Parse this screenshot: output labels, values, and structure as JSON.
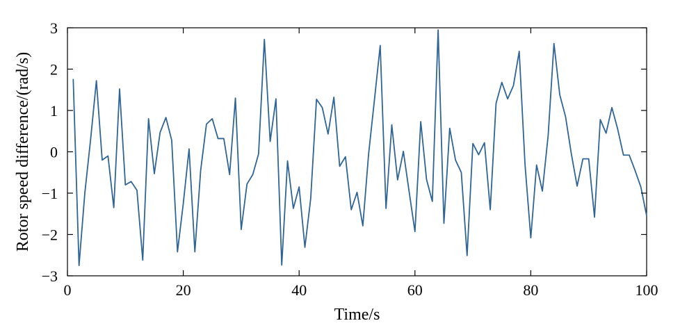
{
  "chart_data": {
    "type": "line",
    "xlabel": "Time/s",
    "ylabel": "Rotor speed difference/(rad/s)",
    "xlim": [
      0,
      100
    ],
    "ylim": [
      -3,
      3
    ],
    "xticks": [
      0,
      20,
      40,
      60,
      80,
      100
    ],
    "xtick_labels": [
      "0",
      "20",
      "40",
      "60",
      "80",
      "100"
    ],
    "yticks": [
      -3,
      -2,
      -1,
      0,
      1,
      2,
      3
    ],
    "ytick_labels": [
      "−3",
      "−2",
      "−1",
      "0",
      "1",
      "2",
      "3"
    ],
    "grid": false,
    "legend": "none",
    "series": [
      {
        "color": "#2e6496",
        "x": [
          1,
          2,
          3,
          4,
          5,
          6,
          7,
          8,
          9,
          10,
          11,
          12,
          13,
          14,
          15,
          16,
          17,
          18,
          19,
          20,
          21,
          22,
          23,
          24,
          25,
          26,
          27,
          28,
          29,
          30,
          31,
          32,
          33,
          34,
          35,
          36,
          37,
          38,
          39,
          40,
          41,
          42,
          43,
          44,
          45,
          46,
          47,
          48,
          49,
          50,
          51,
          52,
          53,
          54,
          55,
          56,
          57,
          58,
          59,
          60,
          61,
          62,
          63,
          64,
          65,
          66,
          67,
          68,
          69,
          70,
          71,
          72,
          73,
          74,
          75,
          76,
          77,
          78,
          79,
          80,
          81,
          82,
          83,
          84,
          85,
          86,
          87,
          88,
          89,
          90,
          91,
          92,
          93,
          94,
          95,
          96,
          97,
          98,
          99,
          100
        ],
        "values": [
          1.75,
          -2.75,
          -1.0,
          0.3,
          1.72,
          -0.2,
          -0.1,
          -1.35,
          1.52,
          -0.8,
          -0.72,
          -0.93,
          -2.62,
          0.8,
          -0.53,
          0.47,
          0.83,
          0.28,
          -2.42,
          -1.25,
          0.07,
          -2.42,
          -0.45,
          0.67,
          0.8,
          0.32,
          0.32,
          -0.55,
          1.3,
          -1.88,
          -0.78,
          -0.55,
          -0.05,
          2.72,
          0.25,
          1.28,
          -2.74,
          -0.22,
          -1.37,
          -0.85,
          -2.31,
          -1.13,
          1.27,
          1.07,
          0.43,
          1.32,
          -0.35,
          -0.12,
          -1.4,
          -0.98,
          -1.79,
          -0.05,
          1.25,
          2.57,
          -1.37,
          0.65,
          -0.68,
          0.01,
          -0.97,
          -1.93,
          0.73,
          -0.67,
          -1.2,
          2.95,
          -1.73,
          0.57,
          -0.2,
          -0.5,
          -2.51,
          0.2,
          -0.07,
          0.22,
          -1.4,
          1.17,
          1.68,
          1.28,
          1.6,
          2.43,
          -0.3,
          -2.08,
          -0.32,
          -0.95,
          0.4,
          2.62,
          1.38,
          0.85,
          -0.05,
          -0.83,
          -0.17,
          -0.17,
          -1.58,
          0.78,
          0.45,
          1.07,
          0.55,
          -0.08,
          -0.08,
          -0.45,
          -0.85,
          -1.55
        ]
      }
    ]
  }
}
